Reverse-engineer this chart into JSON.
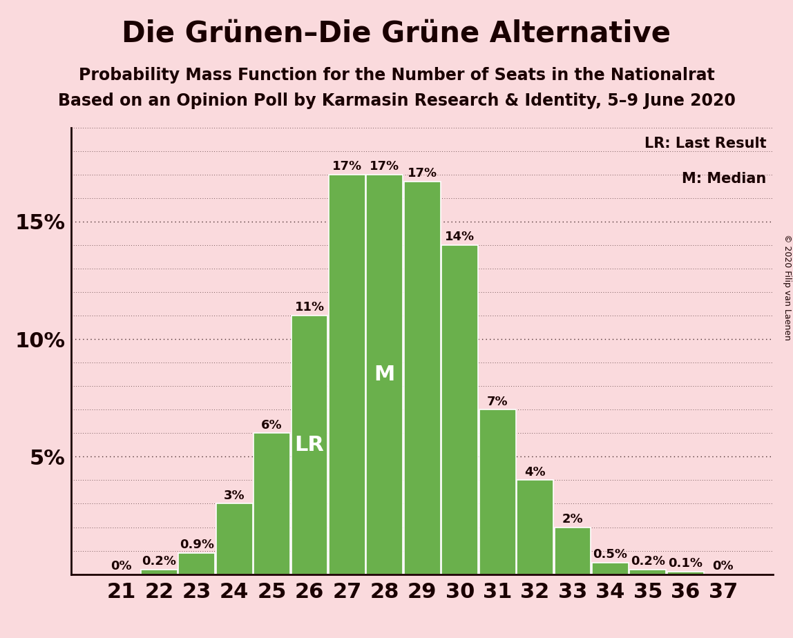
{
  "title": "Die Grünen–Die Grüne Alternative",
  "subtitle1": "Probability Mass Function for the Number of Seats in the Nationalrat",
  "subtitle2": "Based on an Opinion Poll by Karmasin Research & Identity, 5–9 June 2020",
  "copyright": "© 2020 Filip van Laenen",
  "seats": [
    21,
    22,
    23,
    24,
    25,
    26,
    27,
    28,
    29,
    30,
    31,
    32,
    33,
    34,
    35,
    36,
    37
  ],
  "probabilities": [
    0.0,
    0.2,
    0.9,
    3.0,
    6.0,
    11.0,
    17.0,
    17.0,
    16.7,
    14.0,
    7.0,
    4.0,
    2.0,
    0.5,
    0.2,
    0.1,
    0.0
  ],
  "labels": [
    "0%",
    "0.2%",
    "0.9%",
    "3%",
    "6%",
    "11%",
    "17%",
    "17%",
    "17%",
    "14%",
    "7%",
    "4%",
    "2%",
    "0.5%",
    "0.2%",
    "0.1%",
    "0%"
  ],
  "bar_color": "#6ab04c",
  "background_color": "#fadadd",
  "text_color": "#1a0000",
  "lr_seat": 26,
  "median_seat": 28,
  "legend_lr": "LR: Last Result",
  "legend_m": "M: Median",
  "ylim": [
    0,
    19
  ],
  "yticks": [
    5,
    10,
    15
  ],
  "ytick_labels": [
    "5%",
    "10%",
    "15%"
  ],
  "title_fontsize": 30,
  "subtitle_fontsize": 17,
  "axis_fontsize": 22,
  "bar_label_fontsize": 13,
  "legend_fontsize": 15,
  "marker_fontsize": 22,
  "copyright_fontsize": 9,
  "grid_minor_step": 1,
  "grid_major_step": 5
}
